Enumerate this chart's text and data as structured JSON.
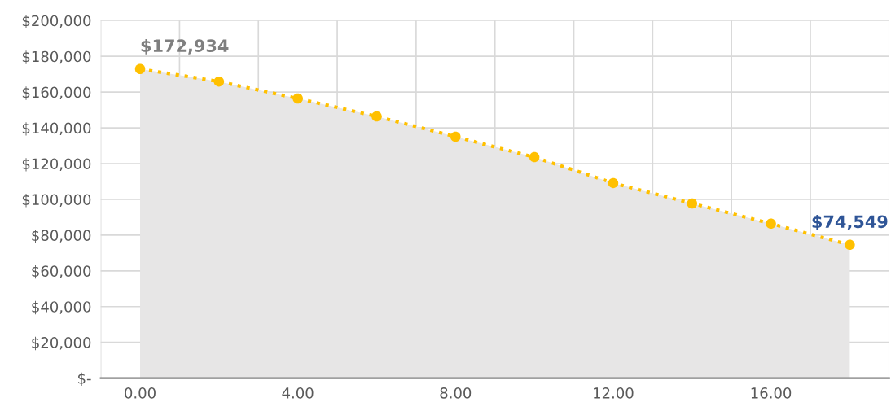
{
  "chart_data": {
    "type": "area",
    "x": [
      0,
      2,
      4,
      6,
      8,
      10,
      12,
      14,
      16,
      18
    ],
    "series": [
      {
        "color": "#ffc000",
        "values": [
          172934,
          165900,
          156400,
          146400,
          135000,
          123600,
          109100,
          97700,
          86400,
          74549
        ]
      }
    ],
    "marker": "circle",
    "line_style": "dotted",
    "xlim": [
      -1,
      19
    ],
    "xticks": [
      {
        "value": -1,
        "label": null
      },
      {
        "value": 0,
        "label": "0.00"
      },
      {
        "value": 1,
        "label": null
      },
      {
        "value": 3,
        "label": null
      },
      {
        "value": 4,
        "label": "4.00"
      },
      {
        "value": 5,
        "label": null
      },
      {
        "value": 7,
        "label": null
      },
      {
        "value": 8,
        "label": "8.00"
      },
      {
        "value": 9,
        "label": null
      },
      {
        "value": 11,
        "label": null
      },
      {
        "value": 12,
        "label": "12.00"
      },
      {
        "value": 13,
        "label": null
      },
      {
        "value": 15,
        "label": null
      },
      {
        "value": 16,
        "label": "16.00"
      },
      {
        "value": 17,
        "label": null
      },
      {
        "value": 19,
        "label": null
      }
    ],
    "ylim": [
      0,
      200000
    ],
    "yticks": [
      {
        "value": 0,
        "label": "$-"
      },
      {
        "value": 20000,
        "label": "$20,000"
      },
      {
        "value": 40000,
        "label": "$40,000"
      },
      {
        "value": 60000,
        "label": "$60,000"
      },
      {
        "value": 80000,
        "label": "$80,000"
      },
      {
        "value": 100000,
        "label": "$100,000"
      },
      {
        "value": 120000,
        "label": "$120,000"
      },
      {
        "value": 140000,
        "label": "$140,000"
      },
      {
        "value": 160000,
        "label": "$160,000"
      },
      {
        "value": 180000,
        "label": "$180,000"
      },
      {
        "value": 200000,
        "label": "$200,000"
      }
    ],
    "grid": true,
    "annotations": [
      {
        "text": "$172,934",
        "x": 0,
        "y": 172934
      },
      {
        "text": "$74,549",
        "x": 18,
        "y": 74549
      }
    ]
  }
}
